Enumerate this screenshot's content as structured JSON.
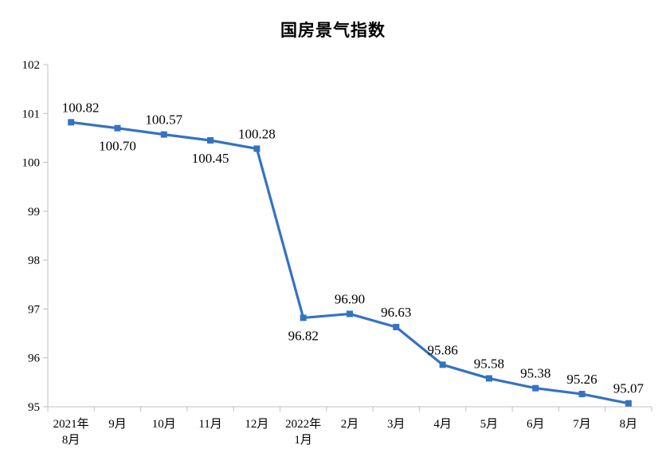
{
  "chart_data": {
    "type": "line",
    "title": "国房景气指数",
    "xlabel": "",
    "ylabel": "",
    "categories": [
      [
        "2021年",
        "8月"
      ],
      [
        "9月"
      ],
      [
        "10月"
      ],
      [
        "11月"
      ],
      [
        "12月"
      ],
      [
        "2022年",
        "1月"
      ],
      [
        "2月"
      ],
      [
        "3月"
      ],
      [
        "4月"
      ],
      [
        "5月"
      ],
      [
        "6月"
      ],
      [
        "7月"
      ],
      [
        "8月"
      ]
    ],
    "values": [
      100.82,
      100.7,
      100.57,
      100.45,
      100.28,
      96.82,
      96.9,
      96.63,
      95.86,
      95.58,
      95.38,
      95.26,
      95.07
    ],
    "value_labels": [
      "100.82",
      "100.70",
      "100.57",
      "100.45",
      "100.28",
      "96.82",
      "96.90",
      "96.63",
      "95.86",
      "95.58",
      "95.38",
      "95.26",
      "95.07"
    ],
    "label_side": [
      "above",
      "below",
      "above",
      "below",
      "above",
      "below",
      "above",
      "above",
      "above",
      "above",
      "above",
      "above",
      "above"
    ],
    "ylim": [
      95,
      102
    ],
    "yticks": [
      95,
      96,
      97,
      98,
      99,
      100,
      101,
      102
    ],
    "grid": false,
    "line_color": "#3572c2",
    "axis_color": "#bfbfbf"
  }
}
